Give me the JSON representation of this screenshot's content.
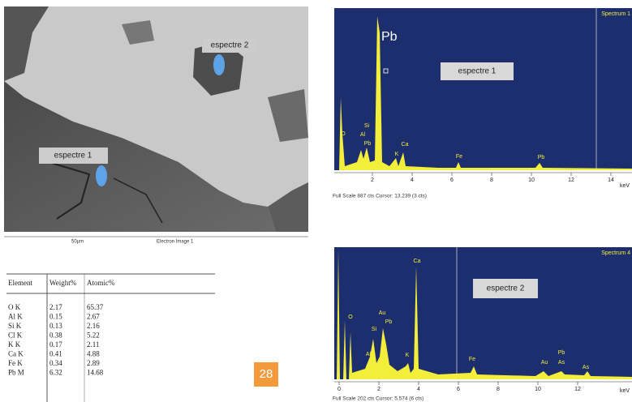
{
  "image": {
    "labels": [
      "espectre 2",
      "espectre 1"
    ],
    "caption": {
      "scale": "50µm",
      "title": "Electron Image 1"
    }
  },
  "table": {
    "header": [
      "Element",
      "Weight%",
      "Atomic%"
    ],
    "rows": [
      [
        "O K",
        "2.17",
        "65.37"
      ],
      [
        "Al K",
        "0.15",
        "2.67"
      ],
      [
        "Si K",
        "0.13",
        "2.16"
      ],
      [
        "Cl K",
        "0.38",
        "5.22"
      ],
      [
        "K K",
        "0.17",
        "2.11"
      ],
      [
        "Ca K",
        "0.41",
        "4.88"
      ],
      [
        "Fe K",
        "0.34",
        "2.89"
      ],
      [
        "Pb M",
        "6.32",
        "14.68"
      ]
    ]
  },
  "page_number": "28",
  "spectra": [
    {
      "title": "Spectrum 1",
      "element_label": "Pb",
      "label": "espectre 1",
      "peaks": [
        "O",
        "Si",
        "Al",
        "Pb",
        "K",
        "Ca",
        "Fe",
        "Pb"
      ],
      "x_ticks": [
        2,
        4,
        6,
        8,
        10,
        12,
        14
      ],
      "unit": "keV",
      "footer": "Full Scale 887 cts Cursor: 13.239 (3 cts)"
    },
    {
      "title": "Spectrum 4",
      "label": "espectre 2",
      "peaks": [
        "O",
        "Au",
        "Si",
        "Pb",
        "Al",
        "K",
        "Ca",
        "Fe",
        "Au",
        "Pb",
        "As",
        "As"
      ],
      "x_ticks": [
        0,
        2,
        4,
        6,
        8,
        10,
        12
      ],
      "unit": "keV",
      "footer": "Full Scale 202 cts Cursor: 5.574 (6 cts)"
    }
  ]
}
